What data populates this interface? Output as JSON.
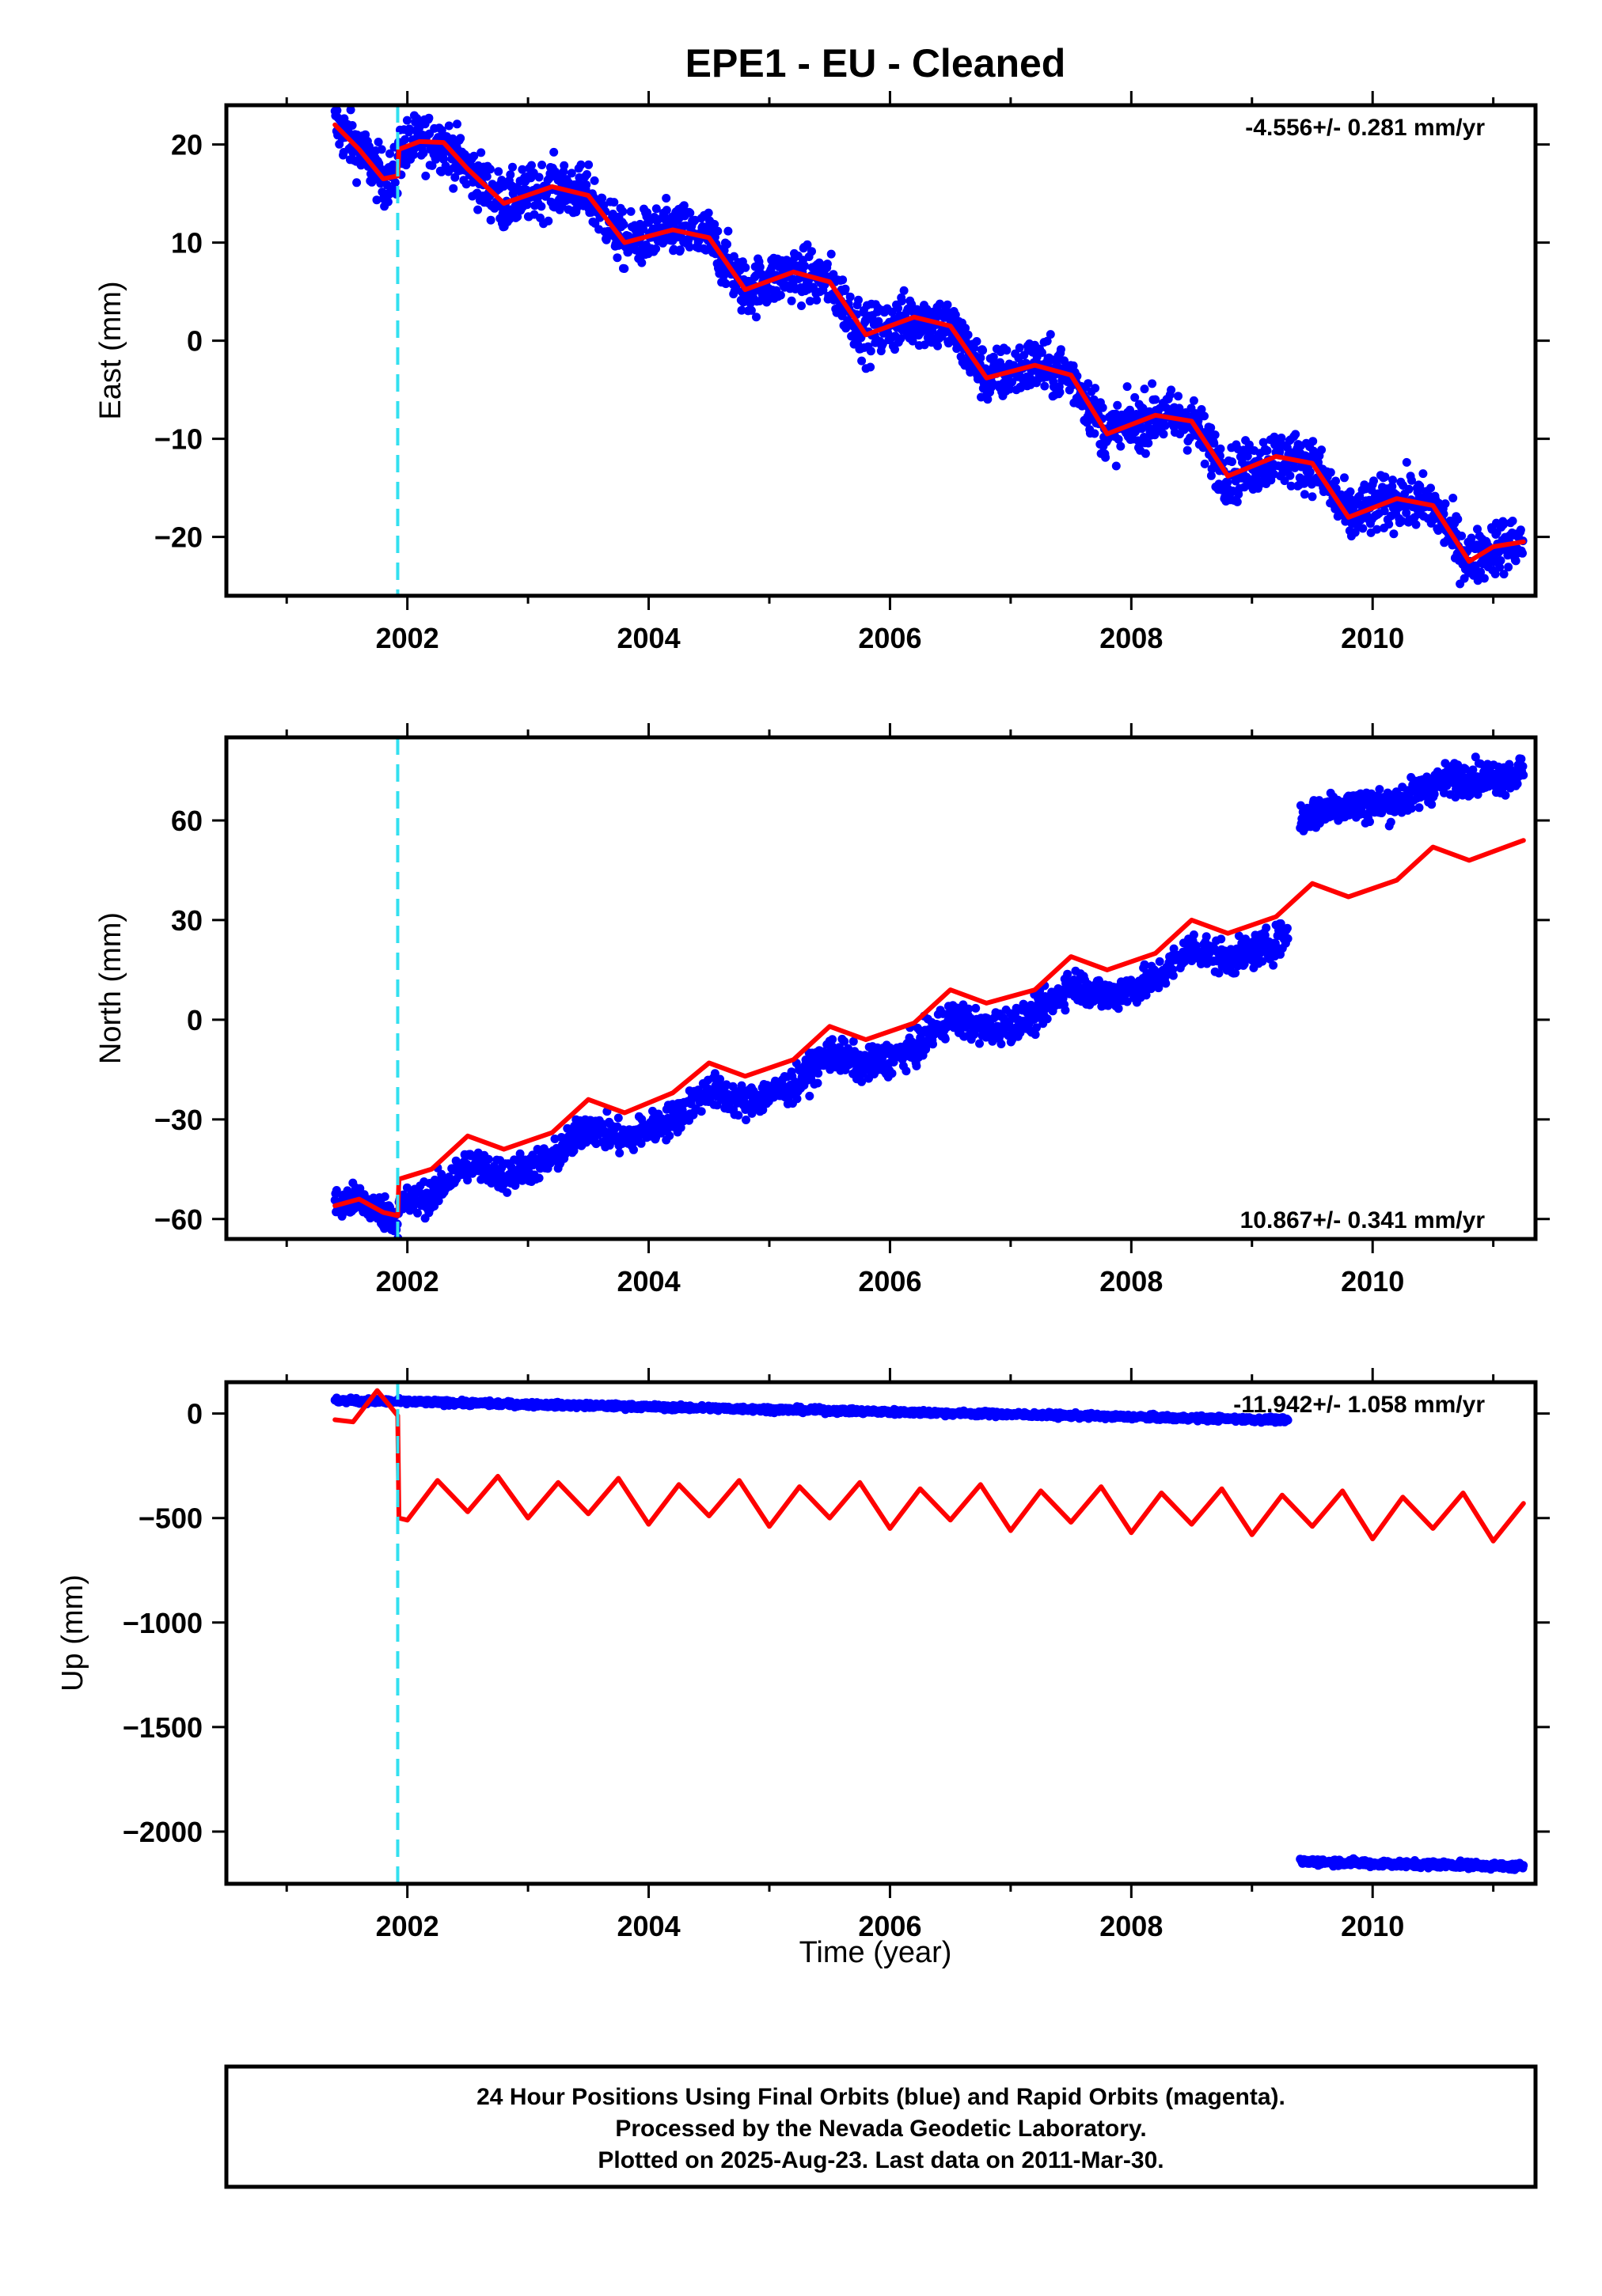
{
  "title": "EPE1  - EU - Cleaned",
  "xlabel": "Time (year)",
  "footer": [
    "24 Hour Positions Using Final Orbits (blue) and Rapid Orbits (magenta).",
    "Processed by the Nevada Geodetic Laboratory.",
    "Plotted on 2025-Aug-23. Last data on 2011-Mar-30."
  ],
  "colors": {
    "data": "#0000ff",
    "model": "#ff0000",
    "event": "#33e0f0",
    "axis": "#000000"
  },
  "chart_data": [
    {
      "type": "scatter",
      "ylabel": "East (mm)",
      "rate_label": "-4.556+/- 0.281 mm/yr",
      "rate_position": "top-right",
      "xlim": [
        2000.5,
        2011.35
      ],
      "ylim": [
        -26,
        24
      ],
      "xticks": [
        2002,
        2004,
        2006,
        2008,
        2010
      ],
      "yticks": [
        -20,
        -10,
        0,
        10,
        20
      ],
      "event_lines": [
        2001.92
      ],
      "data_segments": [
        {
          "start": 2001.4,
          "end": 2011.25
        }
      ],
      "series": [
        {
          "name": "",
          "kind": "model-line",
          "color": "#ff0000",
          "x": [
            2001.4,
            2001.6,
            2001.8,
            2001.92,
            2001.93,
            2002.1,
            2002.3,
            2002.5,
            2002.8,
            2003.2,
            2003.5,
            2003.8,
            2004.2,
            2004.5,
            2004.8,
            2005.2,
            2005.5,
            2005.8,
            2006.2,
            2006.5,
            2006.8,
            2007.2,
            2007.5,
            2007.8,
            2008.2,
            2008.5,
            2008.8,
            2009.2,
            2009.5,
            2009.8,
            2010.2,
            2010.5,
            2010.8,
            2011.0,
            2011.25
          ],
          "y": [
            22,
            19.5,
            16.5,
            16.8,
            19.5,
            20.3,
            20.2,
            17.5,
            14,
            15.7,
            14.8,
            10,
            11.3,
            10.5,
            5.2,
            7,
            6,
            0.6,
            2.4,
            1.5,
            -3.8,
            -2.5,
            -3.5,
            -9.5,
            -7.6,
            -8.2,
            -13.8,
            -11.8,
            -12.5,
            -18,
            -16.1,
            -16.8,
            -22.5,
            -21,
            -20.5
          ]
        },
        {
          "name": "",
          "kind": "trend",
          "slope": -4.556,
          "ref_x": 2006.0,
          "ref_y": 1.3,
          "scatter": 1.4,
          "x": [],
          "y": []
        }
      ]
    },
    {
      "type": "scatter",
      "ylabel": "North (mm)",
      "rate_label": "10.867+/- 0.341 mm/yr",
      "rate_position": "bottom-right",
      "xlim": [
        2000.5,
        2011.35
      ],
      "ylim": [
        -66,
        85
      ],
      "xticks": [
        2002,
        2004,
        2006,
        2008,
        2010
      ],
      "yticks": [
        -60,
        -30,
        0,
        30,
        60
      ],
      "event_lines": [
        2001.92
      ],
      "data_segments": [
        {
          "start": 2001.4,
          "end": 2009.3
        },
        {
          "start": 2009.4,
          "end": 2011.25
        }
      ],
      "series": [
        {
          "name": "",
          "kind": "model-line",
          "color": "#ff0000",
          "x": [
            2001.4,
            2001.6,
            2001.8,
            2001.92,
            2001.93,
            2002.2,
            2002.5,
            2002.8,
            2003.2,
            2003.5,
            2003.8,
            2004.2,
            2004.5,
            2004.8,
            2005.2,
            2005.5,
            2005.8,
            2006.2,
            2006.5,
            2006.8,
            2007.2,
            2007.5,
            2007.8,
            2008.2,
            2008.5,
            2008.8,
            2009.2,
            2009.5,
            2009.8,
            2010.2,
            2010.5,
            2010.8,
            2011.25
          ],
          "y": [
            -56,
            -54,
            -58,
            -59,
            -48,
            -45,
            -35,
            -39,
            -34,
            -24,
            -28,
            -22,
            -13,
            -17,
            -12,
            -2,
            -6,
            -1,
            9,
            5,
            9,
            19,
            15,
            20,
            30,
            26,
            31,
            41,
            37,
            42,
            52,
            48,
            54
          ]
        },
        {
          "name": "",
          "kind": "trend",
          "slope": 10.867,
          "ref_x": 2006.0,
          "ref_y": -9,
          "scatter": 2.5,
          "x": [],
          "y": []
        },
        {
          "name": "",
          "kind": "offset-trend",
          "slope": 8.5,
          "ref_x": 2010.3,
          "ref_y": 68,
          "scatter": 2.5,
          "x": [],
          "y": []
        }
      ]
    },
    {
      "type": "scatter",
      "ylabel": "Up (mm)",
      "rate_label": "-11.942+/- 1.058 mm/yr",
      "rate_position": "top-right",
      "xlim": [
        2000.5,
        2011.35
      ],
      "ylim": [
        -2250,
        150
      ],
      "xticks": [
        2002,
        2004,
        2006,
        2008,
        2010
      ],
      "yticks": [
        -2000,
        -1500,
        -1000,
        -500,
        0
      ],
      "event_lines": [
        2001.92
      ],
      "data_segments": [
        {
          "start": 2001.4,
          "end": 2009.3
        },
        {
          "start": 2009.4,
          "end": 2011.25
        }
      ],
      "series": [
        {
          "name": "",
          "kind": "model-line",
          "color": "#ff0000",
          "x": [
            2001.4,
            2001.55,
            2001.75,
            2001.92,
            2001.93,
            2002.0,
            2002.25,
            2002.5,
            2002.75,
            2003.0,
            2003.25,
            2003.5,
            2003.75,
            2004.0,
            2004.25,
            2004.5,
            2004.75,
            2005.0,
            2005.25,
            2005.5,
            2005.75,
            2006.0,
            2006.25,
            2006.5,
            2006.75,
            2007.0,
            2007.25,
            2007.5,
            2007.75,
            2008.0,
            2008.25,
            2008.5,
            2008.75,
            2009.0,
            2009.25,
            2009.5,
            2009.75,
            2010.0,
            2010.25,
            2010.5,
            2010.75,
            2011.0,
            2011.25
          ],
          "y": [
            -30,
            -40,
            110,
            -10,
            -500,
            -510,
            -320,
            -470,
            -300,
            -500,
            -330,
            -480,
            -310,
            -530,
            -340,
            -490,
            -320,
            -540,
            -350,
            -500,
            -330,
            -550,
            -360,
            -510,
            -340,
            -560,
            -370,
            -520,
            -350,
            -570,
            -380,
            -530,
            -360,
            -580,
            -390,
            -540,
            -370,
            -600,
            -400,
            -550,
            -380,
            -610,
            -430
          ]
        },
        {
          "name": "",
          "kind": "trend",
          "slope": -11.942,
          "ref_x": 2005.0,
          "ref_y": 20,
          "scatter": 6,
          "x": [],
          "y": []
        },
        {
          "name": "",
          "kind": "offset-trend",
          "slope": -12,
          "ref_x": 2010.3,
          "ref_y": -2155,
          "scatter": 8,
          "x": [],
          "y": []
        }
      ]
    }
  ]
}
